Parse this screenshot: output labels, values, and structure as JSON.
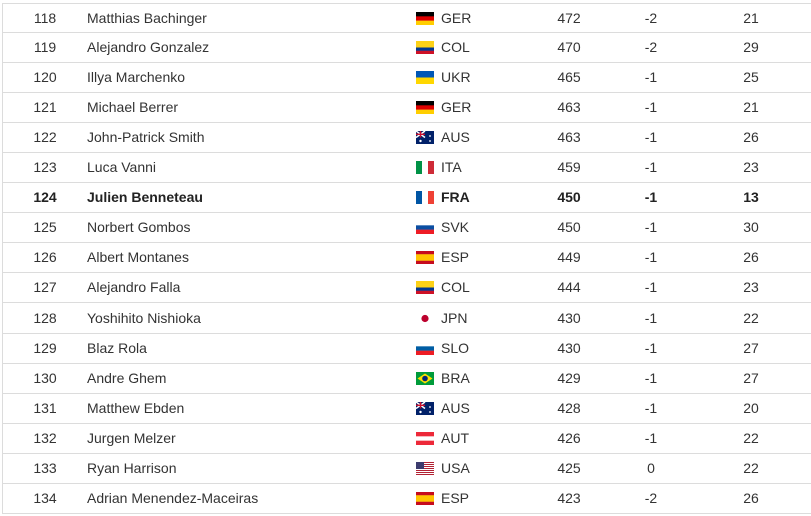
{
  "table": {
    "rows": [
      [
        "118",
        "Matthias Bachinger",
        "GER",
        "472",
        "-2",
        "21"
      ],
      [
        "119",
        "Alejandro Gonzalez",
        "COL",
        "470",
        "-2",
        "29"
      ],
      [
        "120",
        "Illya Marchenko",
        "UKR",
        "465",
        "-1",
        "25"
      ],
      [
        "121",
        "Michael Berrer",
        "GER",
        "463",
        "-1",
        "21"
      ],
      [
        "122",
        "John-Patrick Smith",
        "AUS",
        "463",
        "-1",
        "26"
      ],
      [
        "123",
        "Luca Vanni",
        "ITA",
        "459",
        "-1",
        "23"
      ],
      [
        "124",
        "Julien Benneteau",
        "FRA",
        "450",
        "-1",
        "13"
      ],
      [
        "125",
        "Norbert Gombos",
        "SVK",
        "450",
        "-1",
        "30"
      ],
      [
        "126",
        "Albert Montanes",
        "ESP",
        "449",
        "-1",
        "26"
      ],
      [
        "127",
        "Alejandro Falla",
        "COL",
        "444",
        "-1",
        "23"
      ],
      [
        "128",
        "Yoshihito Nishioka",
        "JPN",
        "430",
        "-1",
        "22"
      ],
      [
        "129",
        "Blaz Rola",
        "SLO",
        "430",
        "-1",
        "27"
      ],
      [
        "130",
        "Andre Ghem",
        "BRA",
        "429",
        "-1",
        "27"
      ],
      [
        "131",
        "Matthew Ebden",
        "AUS",
        "428",
        "-1",
        "20"
      ],
      [
        "132",
        "Jurgen Melzer",
        "AUT",
        "426",
        "-1",
        "22"
      ],
      [
        "133",
        "Ryan Harrison",
        "USA",
        "425",
        "0",
        "22"
      ],
      [
        "134",
        "Adrian Menendez-Maceiras",
        "ESP",
        "423",
        "-2",
        "26"
      ]
    ]
  }
}
